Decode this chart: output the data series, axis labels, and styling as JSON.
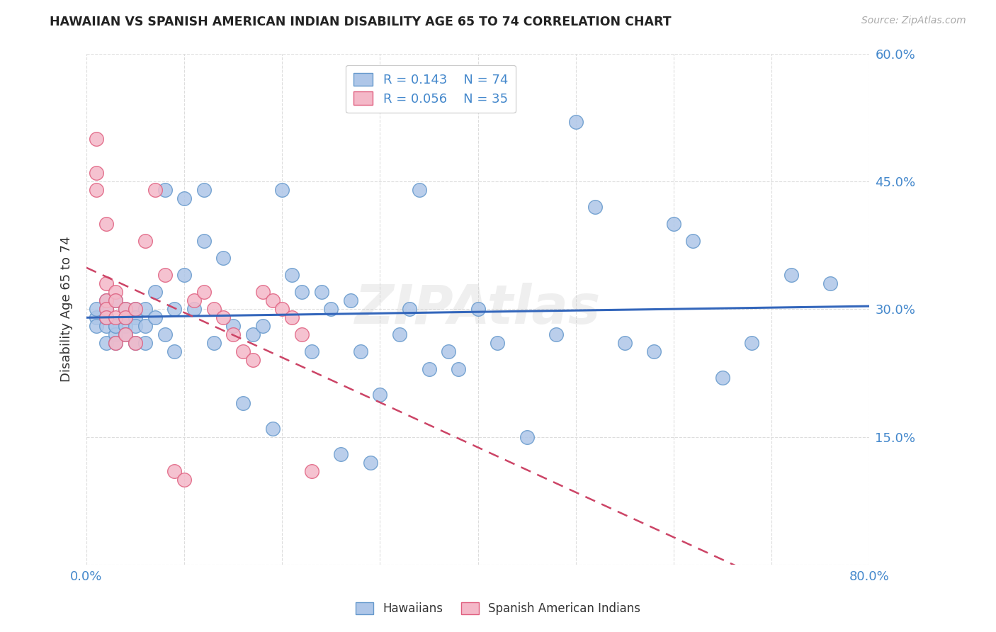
{
  "title": "HAWAIIAN VS SPANISH AMERICAN INDIAN DISABILITY AGE 65 TO 74 CORRELATION CHART",
  "source": "Source: ZipAtlas.com",
  "ylabel": "Disability Age 65 to 74",
  "xlim": [
    0.0,
    0.8
  ],
  "ylim": [
    0.0,
    0.6
  ],
  "xticks": [
    0.0,
    0.1,
    0.2,
    0.3,
    0.4,
    0.5,
    0.6,
    0.7,
    0.8
  ],
  "yticks": [
    0.0,
    0.15,
    0.3,
    0.45,
    0.6
  ],
  "grid_color": "#dddddd",
  "background_color": "#ffffff",
  "hawaiian_color": "#aec6e8",
  "spanish_color": "#f4b8c8",
  "hawaiian_edge_color": "#6699cc",
  "spanish_edge_color": "#e06080",
  "hawaiian_R": 0.143,
  "hawaiian_N": 74,
  "spanish_R": 0.056,
  "spanish_N": 35,
  "hawaiian_line_color": "#3366bb",
  "spanish_line_color": "#cc4466",
  "tick_color": "#4488cc",
  "hawaiian_x": [
    0.01,
    0.01,
    0.01,
    0.02,
    0.02,
    0.02,
    0.02,
    0.02,
    0.02,
    0.03,
    0.03,
    0.03,
    0.03,
    0.03,
    0.04,
    0.04,
    0.04,
    0.04,
    0.05,
    0.05,
    0.05,
    0.05,
    0.06,
    0.06,
    0.06,
    0.07,
    0.07,
    0.08,
    0.08,
    0.09,
    0.09,
    0.1,
    0.1,
    0.11,
    0.12,
    0.12,
    0.13,
    0.14,
    0.15,
    0.16,
    0.17,
    0.18,
    0.19,
    0.2,
    0.21,
    0.22,
    0.23,
    0.24,
    0.25,
    0.26,
    0.27,
    0.28,
    0.29,
    0.3,
    0.32,
    0.33,
    0.34,
    0.35,
    0.37,
    0.38,
    0.4,
    0.42,
    0.45,
    0.48,
    0.5,
    0.52,
    0.55,
    0.58,
    0.6,
    0.62,
    0.65,
    0.68,
    0.72,
    0.76
  ],
  "hawaiian_y": [
    0.29,
    0.3,
    0.28,
    0.31,
    0.29,
    0.28,
    0.26,
    0.3,
    0.29,
    0.28,
    0.27,
    0.31,
    0.28,
    0.26,
    0.3,
    0.28,
    0.29,
    0.27,
    0.3,
    0.29,
    0.28,
    0.26,
    0.3,
    0.28,
    0.26,
    0.32,
    0.29,
    0.44,
    0.27,
    0.3,
    0.25,
    0.43,
    0.34,
    0.3,
    0.38,
    0.44,
    0.26,
    0.36,
    0.28,
    0.19,
    0.27,
    0.28,
    0.16,
    0.44,
    0.34,
    0.32,
    0.25,
    0.32,
    0.3,
    0.13,
    0.31,
    0.25,
    0.12,
    0.2,
    0.27,
    0.3,
    0.44,
    0.23,
    0.25,
    0.23,
    0.3,
    0.26,
    0.15,
    0.27,
    0.52,
    0.42,
    0.26,
    0.25,
    0.4,
    0.38,
    0.22,
    0.26,
    0.34,
    0.33
  ],
  "spanish_x": [
    0.01,
    0.01,
    0.01,
    0.02,
    0.02,
    0.02,
    0.02,
    0.02,
    0.03,
    0.03,
    0.03,
    0.03,
    0.04,
    0.04,
    0.04,
    0.05,
    0.05,
    0.06,
    0.07,
    0.08,
    0.09,
    0.1,
    0.11,
    0.12,
    0.13,
    0.14,
    0.15,
    0.16,
    0.17,
    0.18,
    0.19,
    0.2,
    0.21,
    0.22,
    0.23
  ],
  "spanish_y": [
    0.5,
    0.46,
    0.44,
    0.4,
    0.33,
    0.31,
    0.3,
    0.29,
    0.32,
    0.31,
    0.29,
    0.26,
    0.3,
    0.29,
    0.27,
    0.3,
    0.26,
    0.38,
    0.44,
    0.34,
    0.11,
    0.1,
    0.31,
    0.32,
    0.3,
    0.29,
    0.27,
    0.25,
    0.24,
    0.32,
    0.31,
    0.3,
    0.29,
    0.27,
    0.11
  ]
}
